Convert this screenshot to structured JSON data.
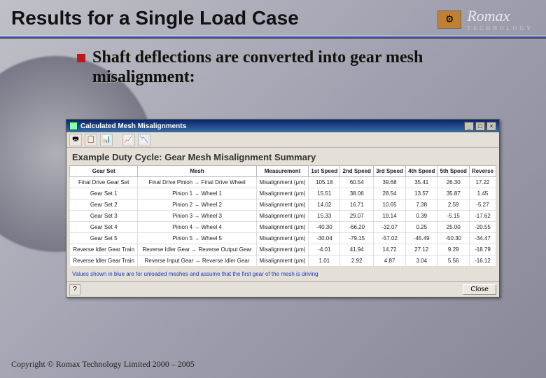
{
  "slide": {
    "title": "Results for a Single Load Case",
    "logo_name": "Romax",
    "logo_sub": "TECHNOLOGY",
    "bullet_text": "Shaft deflections are converted into gear mesh misalignment:",
    "copyright": "Copyright © Romax Technology Limited 2000 – 2005",
    "bullet_color": "#c01818",
    "rule_color": "#2a3a8a"
  },
  "window": {
    "title": "Calculated Mesh Misalignments",
    "minimize": "_",
    "maximize": "□",
    "close": "×",
    "summary_title": "Example Duty Cycle: Gear Mesh Misalignment Summary",
    "footnote": "Values shown in blue are for unloaded meshes and assume that the first gear of the mesh is driving",
    "close_btn": "Close",
    "status_help": "?",
    "toolbar_icons": [
      "🖶",
      "📋",
      "📊",
      "",
      "📈",
      "📉"
    ]
  },
  "table": {
    "columns": [
      "Gear Set",
      "Mesh",
      "Measurement",
      "1st Speed",
      "2nd Speed",
      "3rd Speed",
      "4th Speed",
      "5th Speed",
      "Reverse"
    ],
    "rows": [
      [
        "Final Drive Gear Set",
        "Final Drive Pinion → Final Drive Wheel",
        "Misalignment (μm)",
        "105.18",
        "60.54",
        "39.68",
        "35.41",
        "26.30",
        "17.22"
      ],
      [
        "Gear Set 1",
        "Pinion 1 → Wheel 1",
        "Misalignment (μm)",
        "15.51",
        "38.06",
        "28.54",
        "13.57",
        "35.87",
        "1.45"
      ],
      [
        "Gear Set 2",
        "Pinion 2 → Wheel 2",
        "Misalignment (μm)",
        "14.02",
        "16.71",
        "10.65",
        "7.38",
        "2.59",
        "-5.27"
      ],
      [
        "Gear Set 3",
        "Pinion 3 → Wheel 3",
        "Misalignment (μm)",
        "15.33",
        "29.07",
        "19.14",
        "0.39",
        "-5.15",
        "-17.62"
      ],
      [
        "Gear Set 4",
        "Pinion 4 → Wheel 4",
        "Misalignment (μm)",
        "-40.30",
        "-66.20",
        "-32.07",
        "0.25",
        "25.00",
        "-20.55"
      ],
      [
        "Gear Set 5",
        "Pinion 5 → Wheel 5",
        "Misalignment (μm)",
        "-30.04",
        "-79.15",
        "-57.02",
        "-45.49",
        "-50.30",
        "-34.47"
      ],
      [
        "Reverse Idler Gear Train",
        "Reverse Idler Gear → Reverse Output Gear",
        "Misalignment (μm)",
        "-4.01",
        "41.94",
        "14.72",
        "27.12",
        "9.29",
        "-18.79"
      ],
      [
        "Reverse Idler Gear Train",
        "Reverse Input Gear → Reverse Idler Gear",
        "Misalignment (μm)",
        "1.01",
        "2.92",
        "4.87",
        "3.04",
        "5.56",
        "-16.12"
      ]
    ]
  }
}
